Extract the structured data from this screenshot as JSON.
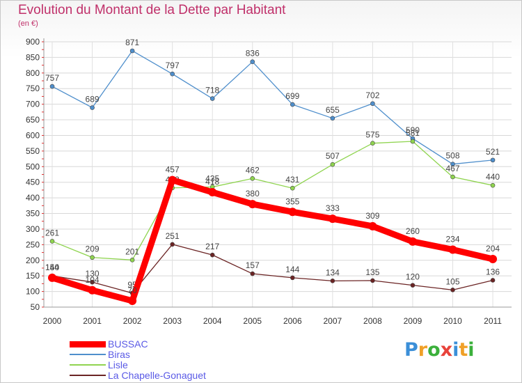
{
  "chart_data": {
    "type": "line",
    "title": "Evolution du Montant de la Dette par Habitant",
    "subtitle": "(en €)",
    "x": [
      "2000",
      "2001",
      "2002",
      "2003",
      "2004",
      "2005",
      "2006",
      "2007",
      "2008",
      "2009",
      "2010",
      "2011"
    ],
    "yticks": [
      50,
      100,
      150,
      200,
      250,
      300,
      350,
      400,
      450,
      500,
      550,
      600,
      650,
      700,
      750,
      800,
      850,
      900
    ],
    "ylim": [
      50,
      900
    ],
    "grid": true,
    "legend_position": "bottom-left",
    "series": [
      {
        "name": "BUSSAC",
        "color": "#ff0000",
        "values": [
          144,
          104,
          70,
          457,
          418,
          380,
          355,
          333,
          309,
          260,
          234,
          204
        ]
      },
      {
        "name": "Biras",
        "color": "#4f8fcc",
        "values": [
          757,
          689,
          871,
          797,
          718,
          836,
          699,
          655,
          702,
          590,
          508,
          521
        ]
      },
      {
        "name": "Lisle",
        "color": "#8fd44f",
        "values": [
          261,
          209,
          201,
          432,
          435,
          462,
          431,
          507,
          575,
          581,
          467,
          440
        ]
      },
      {
        "name": "La Chapelle-Gonaguet",
        "color": "#6b2424",
        "values": [
          150,
          130,
          95,
          251,
          217,
          157,
          144,
          134,
          135,
          120,
          105,
          136
        ]
      }
    ]
  },
  "logo": {
    "letters": [
      "P",
      "r",
      "o",
      "x",
      "i",
      "t",
      "i"
    ],
    "colors": [
      "#3b8fd8",
      "#f0a028",
      "#3bb03b",
      "#e8423a",
      "#3b8fd8",
      "#f0a028",
      "#3bb03b"
    ]
  }
}
